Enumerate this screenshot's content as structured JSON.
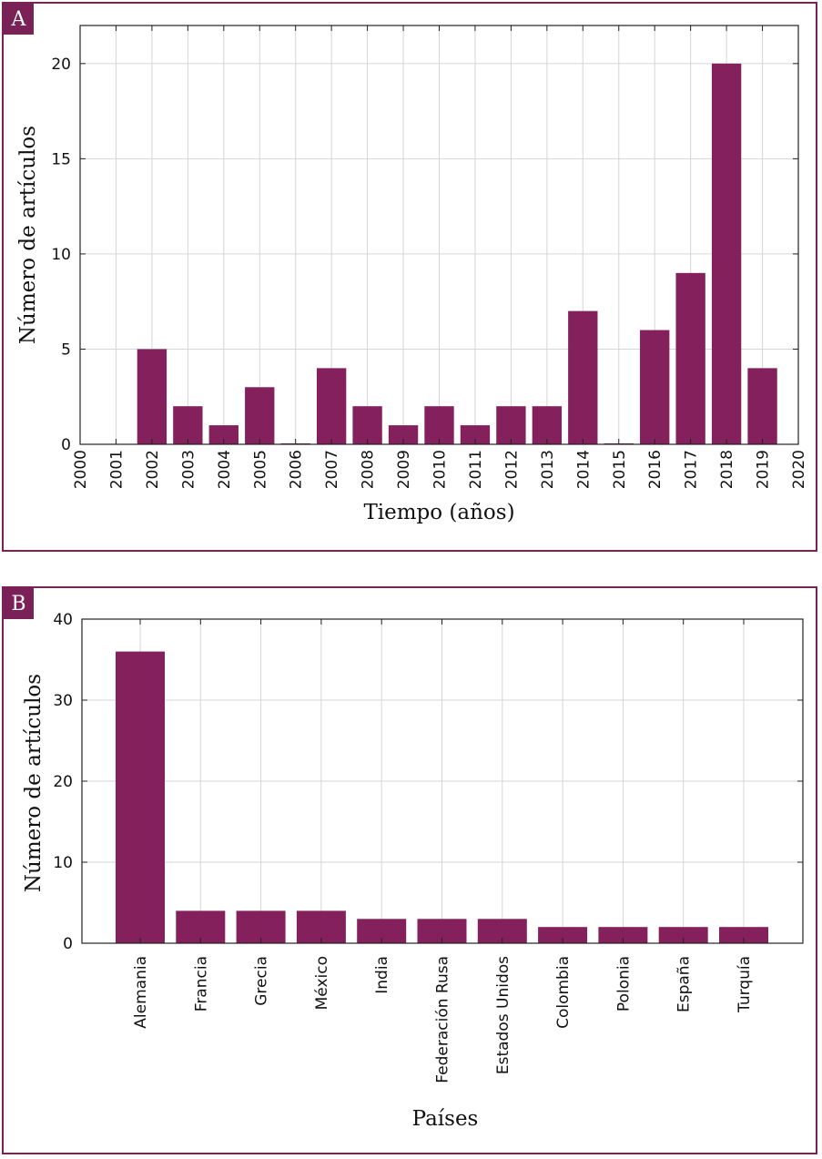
{
  "colors": {
    "bar": "#84215c",
    "frame": "#7a2157",
    "grid": "#d6d6d6",
    "axis": "#222222"
  },
  "panels": {
    "a": {
      "tag": "A"
    },
    "b": {
      "tag": "B"
    }
  },
  "chart_data": [
    {
      "id": "a",
      "type": "bar",
      "xlabel": "Tiempo (años)",
      "ylabel": "Número de artículos",
      "ylim": [
        0,
        22
      ],
      "yticks": [
        0,
        5,
        10,
        15,
        20
      ],
      "xlim": [
        2000,
        2020
      ],
      "xticks": [
        "2000",
        "2001",
        "2002",
        "2003",
        "2004",
        "2005",
        "2006",
        "2007",
        "2008",
        "2009",
        "2010",
        "2011",
        "2012",
        "2013",
        "2014",
        "2015",
        "2016",
        "2017",
        "2018",
        "2019",
        "2020"
      ],
      "categories": [
        "2002",
        "2003",
        "2004",
        "2005",
        "2006",
        "2007",
        "2008",
        "2009",
        "2010",
        "2011",
        "2012",
        "2013",
        "2014",
        "2015",
        "2016",
        "2017",
        "2018",
        "2019"
      ],
      "values": [
        5,
        2,
        1,
        3,
        0,
        4,
        2,
        1,
        2,
        1,
        2,
        2,
        7,
        0,
        6,
        9,
        20,
        4
      ],
      "grid": true
    },
    {
      "id": "b",
      "type": "bar",
      "xlabel": "Países",
      "ylabel": "Número de artículos",
      "ylim": [
        0,
        40
      ],
      "yticks": [
        0,
        10,
        20,
        30,
        40
      ],
      "categories": [
        "Alemania",
        "Francia",
        "Grecia",
        "México",
        "India",
        "Federación Rusa",
        "Estados Unidos",
        "Colombia",
        "Polonia",
        "España",
        "Turquía"
      ],
      "values": [
        36,
        4,
        4,
        4,
        3,
        3,
        3,
        2,
        2,
        2,
        2
      ],
      "grid": true
    }
  ]
}
